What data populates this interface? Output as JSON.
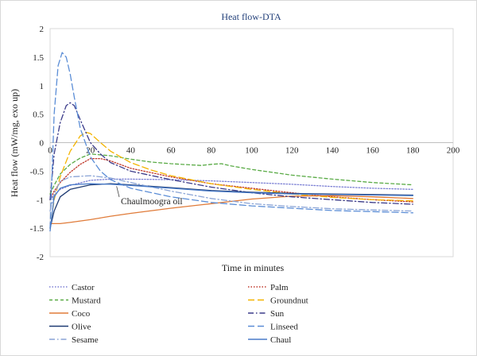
{
  "chart_data": {
    "type": "line",
    "title": "Heat flow-DTA",
    "xlabel": "Time in minutes",
    "ylabel": "Heat flow (mW/mg, exo up)",
    "xlim": [
      0,
      200
    ],
    "ylim": [
      -2,
      2
    ],
    "xticks": [
      0,
      20,
      40,
      60,
      80,
      100,
      120,
      140,
      160,
      180,
      200
    ],
    "yticks": [
      -2,
      -1.5,
      -1,
      -0.5,
      0,
      0.5,
      1,
      1.5,
      2
    ],
    "grid": false,
    "legend_position": "bottom",
    "annotation": {
      "text": "Chaulmoogra oil",
      "points_to_series": "Chaul",
      "at_x": 33
    },
    "series": [
      {
        "name": "Castor",
        "color": "#7b7fd4",
        "dash": "dot",
        "x": [
          0,
          2,
          5,
          10,
          20,
          30,
          40,
          60,
          80,
          100,
          120,
          140,
          160,
          180
        ],
        "y": [
          -1.0,
          -0.92,
          -0.82,
          -0.75,
          -0.66,
          -0.64,
          -0.64,
          -0.65,
          -0.67,
          -0.7,
          -0.73,
          -0.77,
          -0.8,
          -0.82
        ]
      },
      {
        "name": "Palm",
        "color": "#c0392b",
        "dash": "dot",
        "x": [
          0,
          2,
          5,
          10,
          15,
          20,
          25,
          30,
          40,
          60,
          80,
          100,
          120,
          140,
          160,
          180
        ],
        "y": [
          -1.0,
          -0.85,
          -0.7,
          -0.52,
          -0.38,
          -0.28,
          -0.28,
          -0.32,
          -0.45,
          -0.6,
          -0.72,
          -0.8,
          -0.88,
          -0.95,
          -1.0,
          -1.04
        ]
      },
      {
        "name": "Mustard",
        "color": "#5aab46",
        "dash": "dash",
        "x": [
          0,
          2,
          5,
          10,
          15,
          20,
          30,
          40,
          50,
          60,
          70,
          75,
          80,
          85,
          90,
          100,
          120,
          140,
          160,
          180
        ],
        "y": [
          -0.9,
          -0.75,
          -0.55,
          -0.38,
          -0.27,
          -0.2,
          -0.23,
          -0.29,
          -0.34,
          -0.37,
          -0.39,
          -0.4,
          -0.38,
          -0.37,
          -0.41,
          -0.47,
          -0.57,
          -0.64,
          -0.7,
          -0.74
        ]
      },
      {
        "name": "Groundnut",
        "color": "#f4b400",
        "dash": "longdash",
        "x": [
          0,
          2,
          5,
          10,
          15,
          18,
          20,
          25,
          30,
          40,
          50,
          60,
          80,
          100,
          120,
          140,
          160,
          180
        ],
        "y": [
          -1.5,
          -1.0,
          -0.6,
          -0.15,
          0.12,
          0.18,
          0.16,
          0.0,
          -0.15,
          -0.35,
          -0.48,
          -0.58,
          -0.72,
          -0.82,
          -0.9,
          -0.96,
          -1.0,
          -1.02
        ]
      },
      {
        "name": "Coco",
        "color": "#e07b39",
        "dash": "solid",
        "x": [
          0,
          2,
          5,
          10,
          20,
          30,
          40,
          60,
          80,
          100,
          120,
          140,
          160,
          180
        ],
        "y": [
          -1.42,
          -1.42,
          -1.42,
          -1.4,
          -1.35,
          -1.29,
          -1.24,
          -1.15,
          -1.07,
          -0.99,
          -0.94,
          -0.93,
          -0.95,
          -0.98
        ]
      },
      {
        "name": "Sun",
        "color": "#3b3b8a",
        "dash": "dashdot",
        "x": [
          0,
          2,
          5,
          8,
          10,
          12,
          15,
          20,
          25,
          30,
          40,
          60,
          80,
          100,
          120,
          140,
          160,
          180
        ],
        "y": [
          -1.0,
          -0.2,
          0.35,
          0.65,
          0.7,
          0.65,
          0.4,
          0.0,
          -0.2,
          -0.35,
          -0.5,
          -0.65,
          -0.78,
          -0.88,
          -0.95,
          -1.0,
          -1.05,
          -1.08
        ]
      },
      {
        "name": "Olive",
        "color": "#1f3b73",
        "dash": "solid",
        "x": [
          0,
          2,
          5,
          10,
          20,
          30,
          40,
          60,
          80,
          100,
          120,
          140,
          160,
          180
        ],
        "y": [
          -1.5,
          -1.2,
          -0.95,
          -0.82,
          -0.74,
          -0.72,
          -0.74,
          -0.79,
          -0.84,
          -0.87,
          -0.89,
          -0.9,
          -0.91,
          -0.92
        ]
      },
      {
        "name": "Linseed",
        "color": "#5b8dd6",
        "dash": "longdash",
        "x": [
          0,
          2,
          4,
          6,
          8,
          10,
          12,
          15,
          20,
          25,
          30,
          40,
          60,
          80,
          100,
          120,
          140,
          160,
          180
        ],
        "y": [
          -1.5,
          0.5,
          1.35,
          1.58,
          1.5,
          1.2,
          0.8,
          0.25,
          -0.25,
          -0.5,
          -0.65,
          -0.8,
          -0.95,
          -1.05,
          -1.11,
          -1.15,
          -1.19,
          -1.21,
          -1.23
        ]
      },
      {
        "name": "Sesame",
        "color": "#8aa4d6",
        "dash": "dashdot",
        "x": [
          0,
          2,
          5,
          10,
          20,
          30,
          40,
          60,
          80,
          100,
          120,
          140,
          160,
          180
        ],
        "y": [
          -1.2,
          -0.9,
          -0.68,
          -0.6,
          -0.58,
          -0.62,
          -0.7,
          -0.85,
          -0.98,
          -1.07,
          -1.12,
          -1.16,
          -1.18,
          -1.2
        ]
      },
      {
        "name": "Chaul",
        "color": "#4a7cc9",
        "dash": "solid",
        "x": [
          0,
          2,
          5,
          10,
          20,
          30,
          40,
          60,
          80,
          100,
          120,
          140,
          160,
          180
        ],
        "y": [
          -1.55,
          -0.95,
          -0.8,
          -0.74,
          -0.72,
          -0.73,
          -0.75,
          -0.8,
          -0.85,
          -0.88,
          -0.9,
          -0.91,
          -0.92,
          -0.93
        ]
      }
    ]
  }
}
